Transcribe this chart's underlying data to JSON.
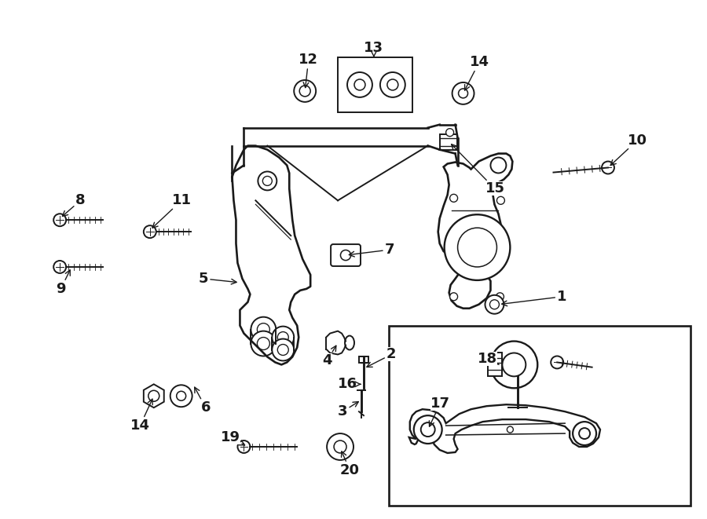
{
  "bg_color": "#ffffff",
  "line_color": "#1a1a1a",
  "fig_width": 9.0,
  "fig_height": 6.61,
  "label_fontsize": 13,
  "lw": 1.4
}
